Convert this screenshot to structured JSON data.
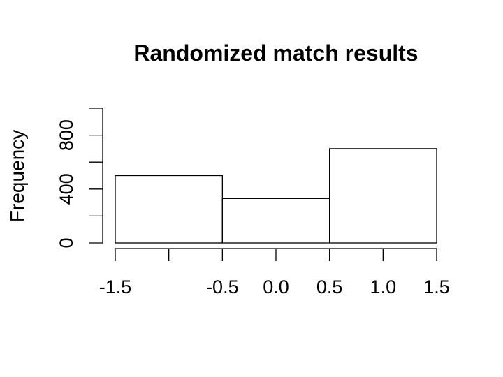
{
  "chart_data": {
    "type": "bar",
    "title": "Randomized match results",
    "xlabel": "",
    "ylabel": "Frequency",
    "bins": [
      {
        "x0": -1.5,
        "x1": -0.5,
        "count": 500
      },
      {
        "x0": -0.5,
        "x1": 0.5,
        "count": 330
      },
      {
        "x0": 0.5,
        "x1": 1.5,
        "count": 700
      }
    ],
    "xlim": [
      -1.5,
      1.5
    ],
    "ylim": [
      0,
      1000
    ],
    "x_ticks": [
      -1.5,
      -1.0,
      -0.5,
      0.0,
      0.5,
      1.0,
      1.5
    ],
    "x_tick_labels": [
      "-1.5",
      "",
      "-0.5",
      "0.0",
      "0.5",
      "1.0",
      "1.5"
    ],
    "y_ticks": [
      0,
      200,
      400,
      600,
      800,
      1000
    ],
    "y_tick_labels": [
      "0",
      "",
      "400",
      "",
      "800",
      ""
    ],
    "grid": false,
    "legend": "none"
  }
}
